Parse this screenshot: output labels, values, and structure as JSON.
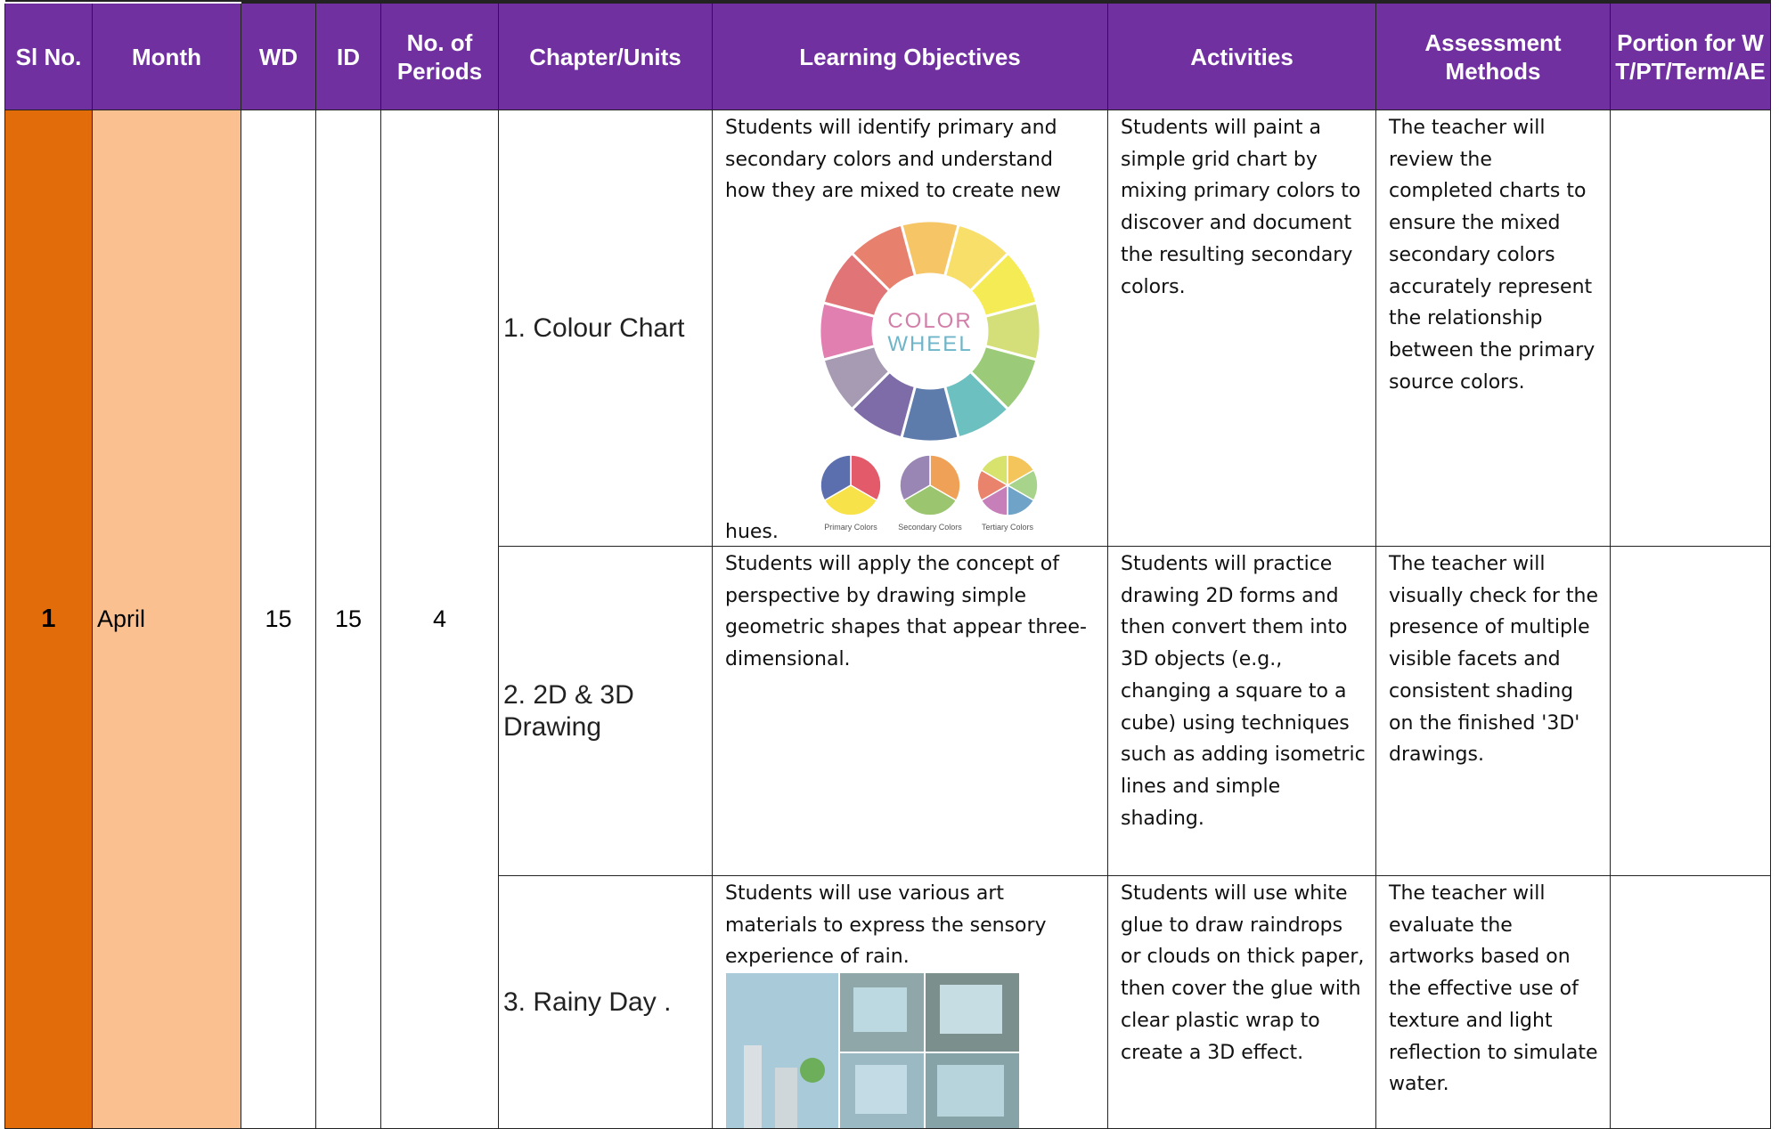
{
  "header": {
    "columns": [
      "Sl No.",
      "Month",
      "WD",
      "ID",
      "No. of Periods",
      "Chapter/Units",
      "Learning Objectives",
      "Activities",
      "Assessment Methods",
      "Portion for WT/PT/Term/AE"
    ]
  },
  "row": {
    "sl": "1",
    "month": "April",
    "wd": "15",
    "id": "15",
    "periods": "4",
    "units": [
      {
        "chapter": "1. Colour Chart",
        "objective": "Students will identify primary and secondary colors and understand how they are mixed to create new",
        "objective_tail": "hues.",
        "activity": "Students will paint a simple grid chart by mixing primary colors to discover and document the resulting secondary colors.",
        "assessment": "The teacher will review the completed charts to ensure the mixed secondary colors accurately represent the relationship between the primary source colors."
      },
      {
        "chapter": "2. 2D & 3D Drawing",
        "objective": "Students will apply the concept of perspective by drawing simple geometric shapes that appear three-dimensional.",
        "activity": "Students will practice drawing 2D forms and then convert them into 3D objects (e.g., changing a square to a cube) using techniques such as adding isometric lines and simple shading.",
        "assessment": "The teacher will visually check for the presence of multiple visible facets and consistent shading on the finished '3D' drawings."
      },
      {
        "chapter": "3. Rainy Day .",
        "objective": "Students will use various art materials to express the sensory experience of rain.",
        "activity": "Students will use white glue to draw raindrops or clouds on thick paper, then cover the glue with clear plastic wrap to create a 3D effect.",
        "assessment": "The teacher will evaluate the artworks based on the effective use of texture and light reflection to simulate water."
      }
    ]
  },
  "color_wheel": {
    "title_1": "COLOR",
    "title_2": "WHEEL",
    "captions": [
      "Primary Colors",
      "Secondary Colors",
      "Tertiary Colors"
    ]
  }
}
